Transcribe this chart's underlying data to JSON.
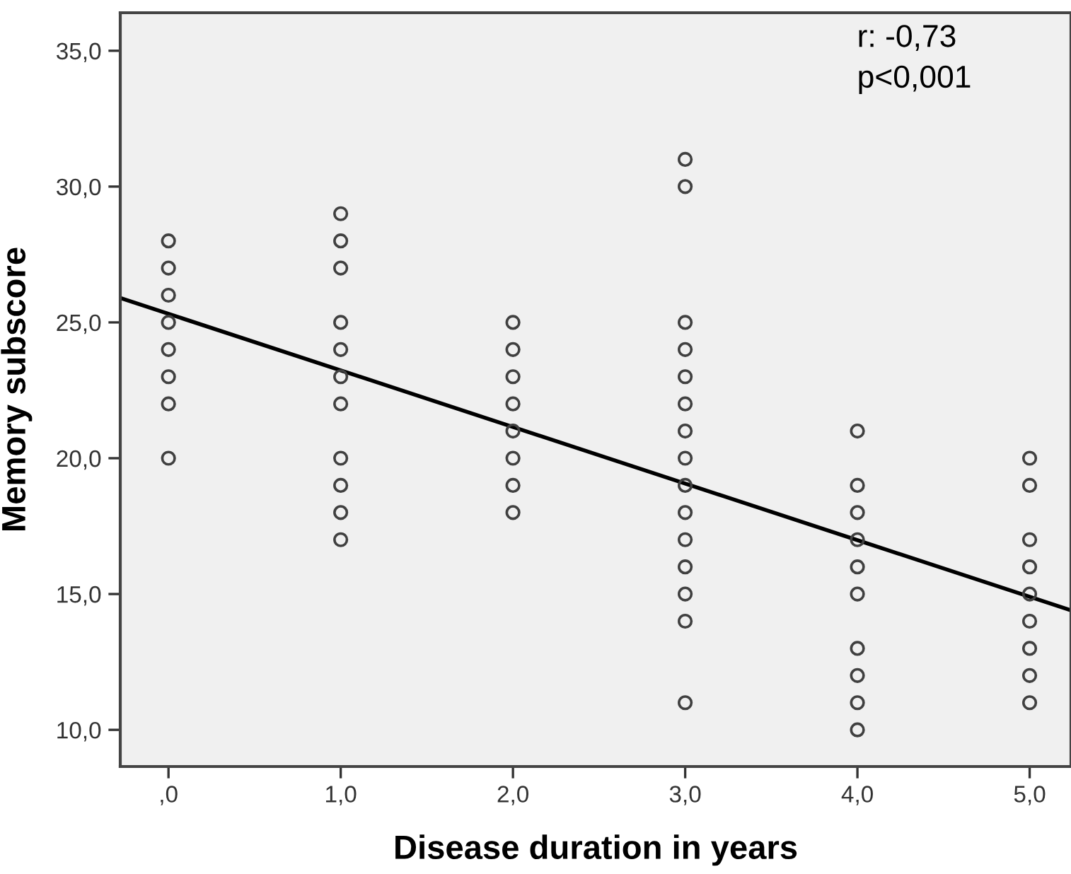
{
  "chart_data": {
    "type": "scatter",
    "xlabel": "Disease duration in years",
    "ylabel": "Memory subscore",
    "annotations": [
      "r: -0,73",
      "p<0,001"
    ],
    "series": [
      {
        "color": "#404040",
        "marker": "circle",
        "x": [
          0,
          0,
          0,
          0,
          0,
          0,
          0,
          0,
          1,
          1,
          1,
          1,
          1,
          1,
          1,
          1,
          1,
          1,
          1,
          2,
          2,
          2,
          2,
          2,
          2,
          2,
          2,
          3,
          3,
          3,
          3,
          3,
          3,
          3,
          3,
          3,
          3,
          3,
          3,
          3,
          3,
          3,
          4,
          4,
          4,
          4,
          4,
          4,
          4,
          4,
          4,
          4,
          5,
          5,
          5,
          5,
          5,
          5,
          5,
          5,
          5
        ],
        "values": [
          20,
          22,
          23,
          24,
          25,
          26,
          27,
          28,
          17,
          18,
          19,
          20,
          22,
          23,
          24,
          25,
          27,
          28,
          29,
          18,
          19,
          20,
          21,
          22,
          23,
          24,
          25,
          11,
          14,
          15,
          16,
          17,
          18,
          19,
          20,
          21,
          22,
          23,
          24,
          25,
          30,
          31,
          10,
          11,
          12,
          13,
          15,
          16,
          17,
          18,
          19,
          21,
          11,
          12,
          13,
          14,
          15,
          16,
          17,
          19,
          20
        ]
      },
      {
        "type": "line",
        "color": "#000000",
        "x": [
          -0.28,
          5.24
        ],
        "values": [
          25.9,
          14.4
        ]
      }
    ],
    "xlim": [
      -0.28,
      5.24
    ],
    "ylim": [
      8.65,
      36.4
    ],
    "xticks": [
      {
        "value": 0,
        "label": ",0"
      },
      {
        "value": 1,
        "label": "1,0"
      },
      {
        "value": 2,
        "label": "2,0"
      },
      {
        "value": 3,
        "label": "3,0"
      },
      {
        "value": 4,
        "label": "4,0"
      },
      {
        "value": 5,
        "label": "5,0"
      }
    ],
    "yticks": [
      {
        "value": 10,
        "label": "10,0"
      },
      {
        "value": 15,
        "label": "15,0"
      },
      {
        "value": 20,
        "label": "20,0"
      },
      {
        "value": 25,
        "label": "25,0"
      },
      {
        "value": 30,
        "label": "30,0"
      },
      {
        "value": 35,
        "label": "35,0"
      }
    ],
    "grid": false
  }
}
